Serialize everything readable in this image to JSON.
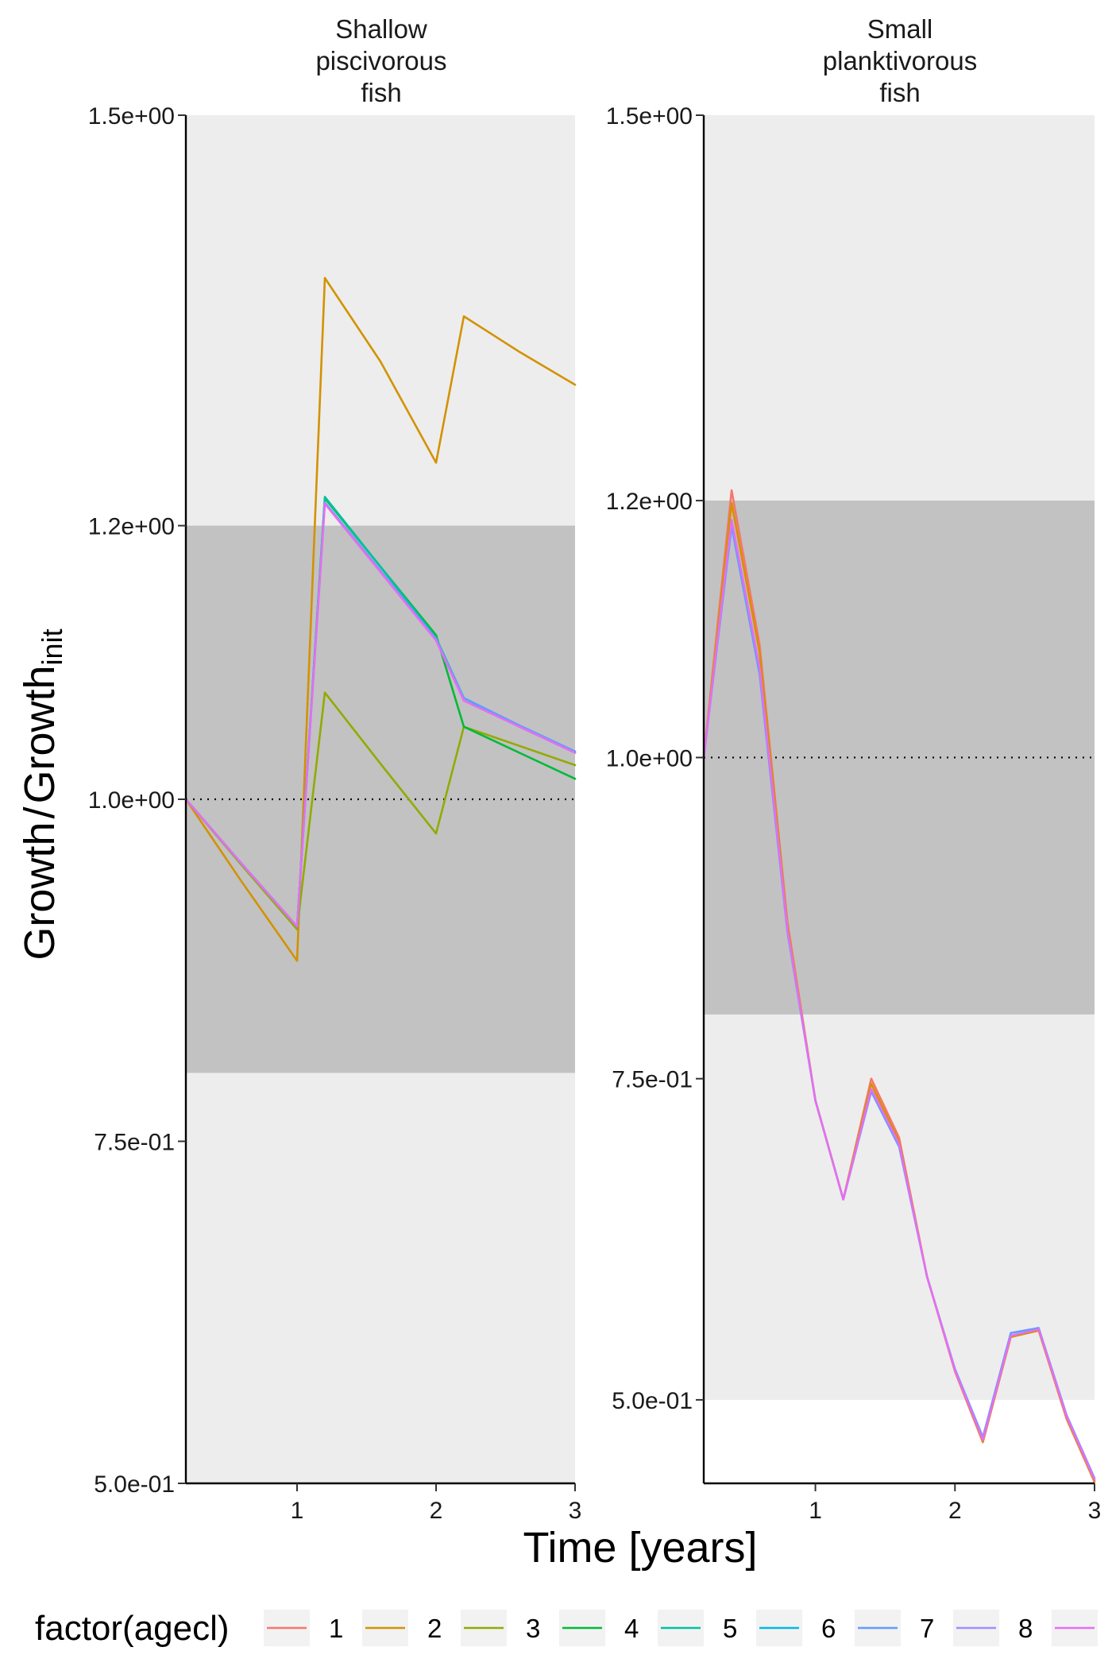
{
  "chart_data": {
    "type": "line",
    "ylabel_main": "Growth",
    "ylabel_sep": "/",
    "ylabel_base": "Growth",
    "ylabel_sub": "init",
    "xlabel": "Time [years]",
    "xlim": [
      0.2,
      3.0
    ],
    "x_ticks": [
      1,
      2,
      3
    ],
    "ylim": [
      0.5,
      1.5
    ],
    "y_ticks": [
      0.5,
      0.75,
      1.0,
      1.2,
      1.5
    ],
    "y_tick_labels": [
      "5.0e-01",
      "7.5e-01",
      "1.0e+00",
      "1.2e+00",
      "1.5e+00"
    ],
    "reference_line": 1.0,
    "legend": {
      "title": "factor(agecl)",
      "position": "bottom",
      "entries": [
        {
          "label": "1",
          "color": "#F8766D"
        },
        {
          "label": "2",
          "color": "#D39200"
        },
        {
          "label": "3",
          "color": "#93AA00"
        },
        {
          "label": "4",
          "color": "#00BA38"
        },
        {
          "label": "5",
          "color": "#00C19F"
        },
        {
          "label": "6",
          "color": "#00B9E3"
        },
        {
          "label": "7",
          "color": "#619CFF"
        },
        {
          "label": "8",
          "color": "#9E8FFF"
        },
        {
          "label": "",
          "color": "#E56EF2"
        }
      ]
    },
    "panels": [
      {
        "title_lines": [
          "Shallow",
          "piscivorous",
          "fish"
        ],
        "ylim": [
          0.5,
          1.5
        ],
        "band_outer": [
          0.5,
          1.5
        ],
        "band_inner": [
          0.8,
          1.2
        ],
        "series": [
          {
            "label": "2",
            "x": [
              0.2,
              0.6,
              1.0,
              1.2,
              1.6,
              2.0,
              2.2,
              2.6,
              3.0
            ],
            "y": [
              1.0,
              0.94,
              0.882,
              1.381,
              1.32,
              1.246,
              1.353,
              1.327,
              1.303
            ]
          },
          {
            "label": "3",
            "x": [
              0.2,
              0.6,
              1.0,
              1.2,
              1.6,
              2.0,
              2.2,
              2.6,
              3.0
            ],
            "y": [
              1.0,
              0.952,
              0.905,
              1.078,
              1.026,
              0.975,
              1.053,
              1.039,
              1.025
            ]
          },
          {
            "label": "4",
            "x": [
              0.2,
              0.6,
              1.0,
              1.2,
              1.6,
              2.0,
              2.2,
              2.6,
              3.0
            ],
            "y": [
              1.0,
              0.953,
              0.907,
              1.22,
              1.17,
              1.12,
              1.053,
              1.034,
              1.015
            ]
          },
          {
            "label": "5",
            "x": [
              0.2,
              0.6,
              1.0,
              1.2,
              1.6,
              2.0,
              2.2,
              2.6,
              3.0
            ],
            "y": [
              1.0,
              0.953,
              0.907,
              1.221,
              1.17,
              1.118,
              1.074,
              1.053,
              1.034
            ]
          },
          {
            "label": "7",
            "x": [
              0.2,
              0.6,
              1.0,
              1.2,
              1.6,
              2.0,
              2.2,
              2.6,
              3.0
            ],
            "y": [
              1.0,
              0.953,
              0.907,
              1.217,
              1.167,
              1.117,
              1.074,
              1.054,
              1.035
            ]
          },
          {
            "label": "",
            "x": [
              0.2,
              0.6,
              1.0,
              1.2,
              1.6,
              2.0,
              2.2,
              2.6,
              3.0
            ],
            "y": [
              1.0,
              0.953,
              0.907,
              1.216,
              1.166,
              1.116,
              1.072,
              1.053,
              1.034
            ]
          }
        ]
      },
      {
        "title_lines": [
          "Small",
          "planktivorous",
          "fish"
        ],
        "ylim": [
          0.435,
          1.5
        ],
        "band_outer": [
          0.5,
          1.5
        ],
        "band_inner": [
          0.8,
          1.2
        ],
        "series": [
          {
            "label": "1",
            "x": [
              0.2,
              0.4,
              0.6,
              0.8,
              1.0,
              1.2,
              1.4,
              1.6,
              1.8,
              2.0,
              2.2,
              2.4,
              2.6,
              2.8,
              3.0
            ],
            "y": [
              1.0,
              1.208,
              1.088,
              0.872,
              0.733,
              0.656,
              0.75,
              0.704,
              0.596,
              0.522,
              0.467,
              0.549,
              0.554,
              0.485,
              0.436
            ]
          },
          {
            "label": "2",
            "x": [
              0.2,
              0.4,
              0.6,
              0.8,
              1.0,
              1.2,
              1.4,
              1.6,
              1.8,
              2.0,
              2.2,
              2.4,
              2.6,
              2.8,
              3.0
            ],
            "y": [
              1.0,
              1.198,
              1.082,
              0.869,
              0.733,
              0.656,
              0.746,
              0.701,
              0.596,
              0.523,
              0.468,
              0.549,
              0.554,
              0.486,
              0.437
            ]
          },
          {
            "label": "7",
            "x": [
              0.2,
              0.4,
              0.6,
              0.8,
              1.0,
              1.2,
              1.4,
              1.6,
              1.8,
              2.0,
              2.2,
              2.4,
              2.6,
              2.8,
              3.0
            ],
            "y": [
              1.0,
              1.18,
              1.065,
              0.864,
              0.733,
              0.656,
              0.74,
              0.697,
              0.596,
              0.524,
              0.471,
              0.552,
              0.556,
              0.488,
              0.439
            ]
          },
          {
            "label": "",
            "x": [
              0.2,
              0.4,
              0.6,
              0.8,
              1.0,
              1.2,
              1.4,
              1.6,
              1.8,
              2.0,
              2.2,
              2.4,
              2.6,
              2.8,
              3.0
            ],
            "y": [
              1.0,
              1.185,
              1.07,
              0.866,
              0.733,
              0.656,
              0.742,
              0.699,
              0.596,
              0.523,
              0.469,
              0.55,
              0.555,
              0.487,
              0.438
            ]
          }
        ]
      }
    ]
  }
}
